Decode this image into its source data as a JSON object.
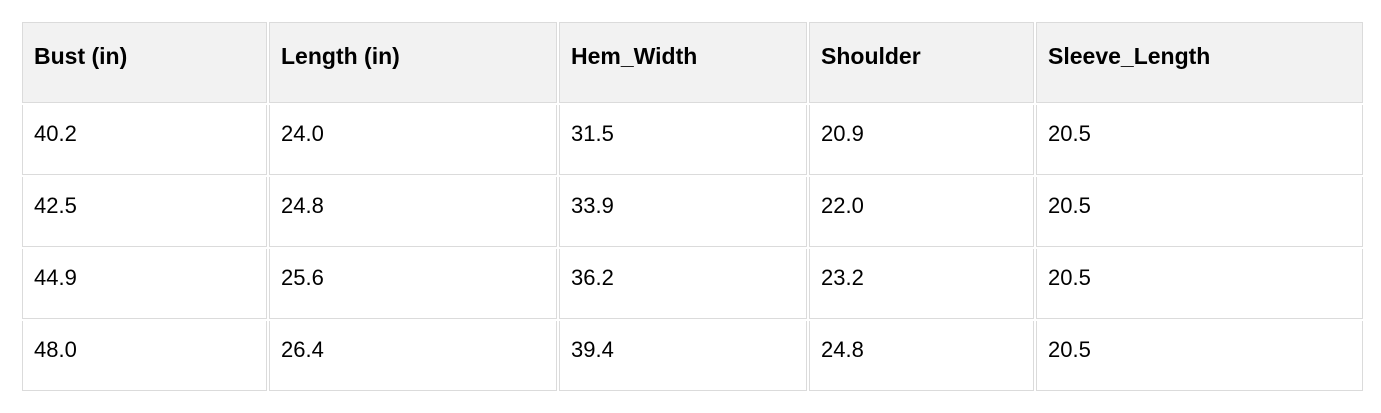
{
  "colors": {
    "page_background": "#ffffff",
    "header_background": "#f2f2f2",
    "cell_background": "#ffffff",
    "border": "#dbdbdb",
    "text": "#000000"
  },
  "table": {
    "columns": [
      "Bust (in)",
      "Length (in)",
      "Hem_Width",
      "Shoulder",
      "Sleeve_Length"
    ],
    "rows": [
      [
        "40.2",
        "24.0",
        "31.5",
        "20.9",
        "20.5"
      ],
      [
        "42.5",
        "24.8",
        "33.9",
        "22.0",
        "20.5"
      ],
      [
        "44.9",
        "25.6",
        "36.2",
        "23.2",
        "20.5"
      ],
      [
        "48.0",
        "26.4",
        "39.4",
        "24.8",
        "20.5"
      ]
    ]
  },
  "chart_data": {
    "type": "table",
    "title": "",
    "columns": [
      "Bust (in)",
      "Length (in)",
      "Hem_Width",
      "Shoulder",
      "Sleeve_Length"
    ],
    "rows": [
      [
        40.2,
        24.0,
        31.5,
        20.9,
        20.5
      ],
      [
        42.5,
        24.8,
        33.9,
        22.0,
        20.5
      ],
      [
        44.9,
        25.6,
        36.2,
        23.2,
        20.5
      ],
      [
        48.0,
        26.4,
        39.4,
        24.8,
        20.5
      ]
    ]
  }
}
